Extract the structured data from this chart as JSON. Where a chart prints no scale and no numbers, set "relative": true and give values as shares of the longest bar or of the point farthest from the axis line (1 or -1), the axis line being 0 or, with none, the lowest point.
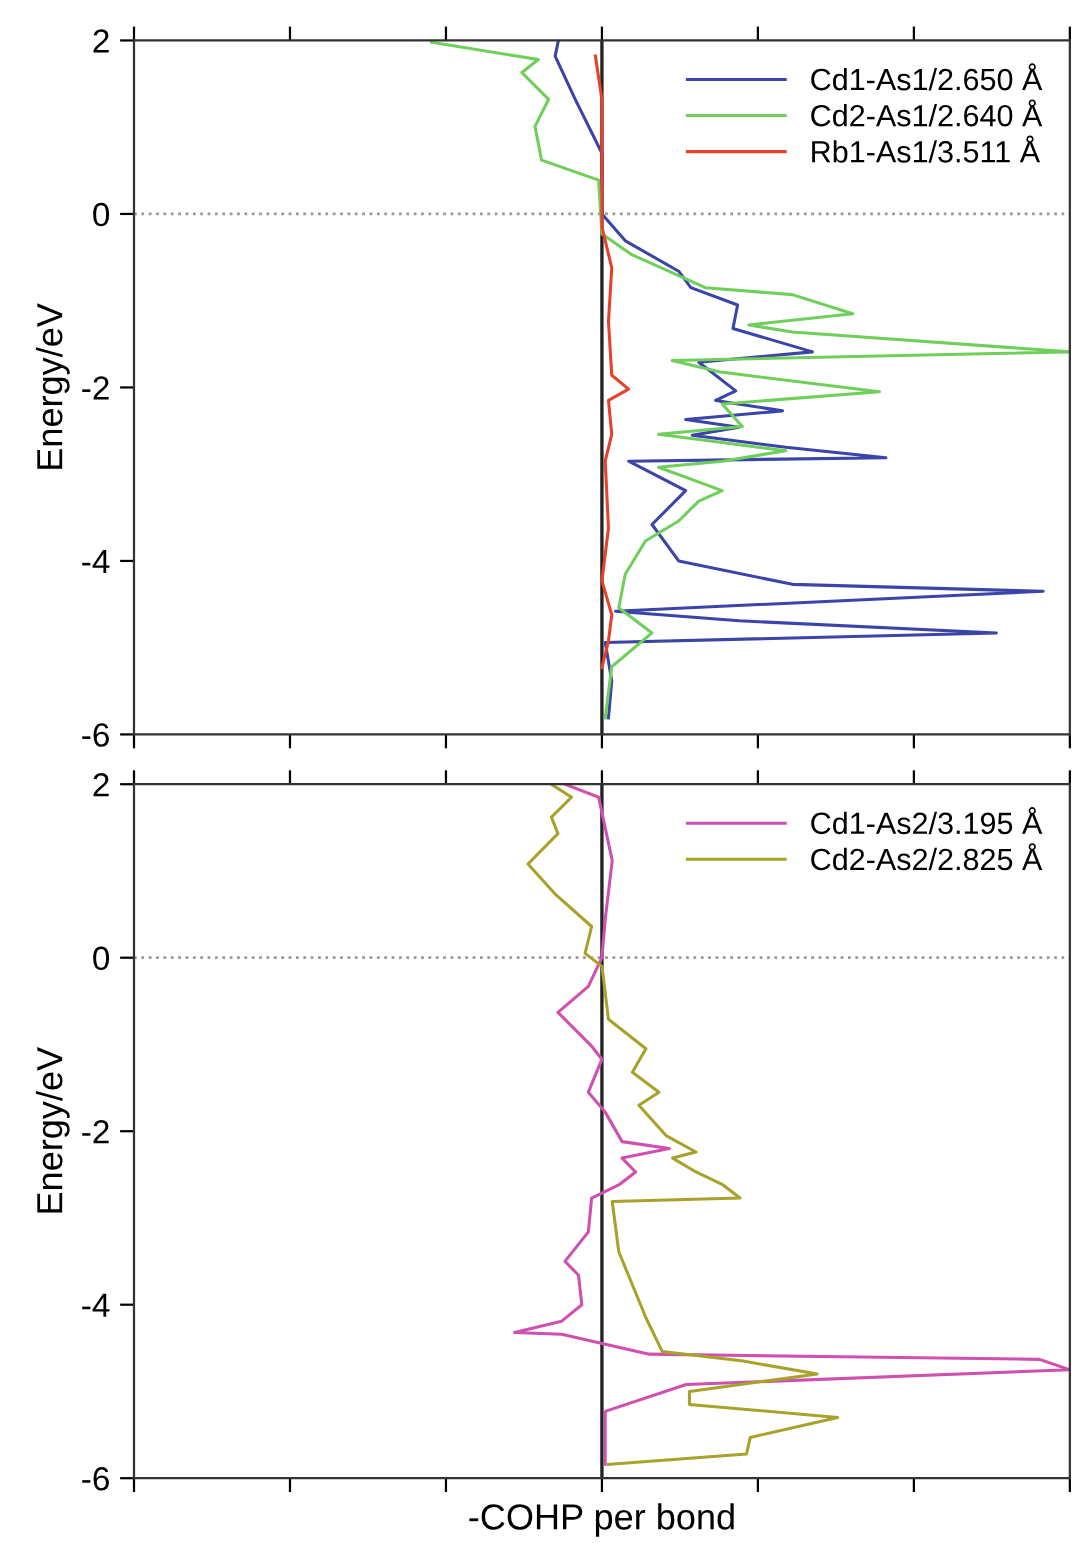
{
  "chart_data": [
    {
      "type": "line",
      "orientation": "horizontal",
      "relative": true,
      "ylabel": "Energy/eV",
      "ylim": [
        -6,
        2
      ],
      "yticks": [
        -6,
        -4,
        -2,
        0,
        2
      ],
      "tick_labels": "y",
      "grid": false,
      "legend": "top right",
      "ref_lines": [
        {
          "axis": "y",
          "value": 0,
          "label": null,
          "color": "#999999",
          "line_style": "dotted"
        }
      ],
      "series": [
        {
          "name": "Cd1-As1/2.650 Å",
          "color": "#3b44a8",
          "x": [
            2,
            1.82,
            1.32,
            0.7,
            0,
            -0.31,
            -0.66,
            -0.85,
            -1.05,
            -1.32,
            -1.59,
            -1.71,
            -2.04,
            -2.15,
            -2.27,
            -2.37,
            -2.46,
            -2.55,
            -2.69,
            -2.81,
            -2.85,
            -3.19,
            -3.58,
            -4.0,
            -4.27,
            -4.35,
            -4.58,
            -4.69,
            -4.83,
            -4.94,
            -5.38,
            -5.81
          ],
          "values": [
            -0.093,
            -0.1,
            -0.057,
            0,
            0,
            0.05,
            0.164,
            0.19,
            0.29,
            0.28,
            0.45,
            0.207,
            0.286,
            0.243,
            0.386,
            0.179,
            0.293,
            0.193,
            0.393,
            0.607,
            0.057,
            0.179,
            0.107,
            0.164,
            0.407,
            0.943,
            0.029,
            0.293,
            0.843,
            0.007,
            0.021,
            0.014
          ]
        },
        {
          "name": "Cd2-As1/2.640 Å",
          "color": "#6fcf5a",
          "x": [
            1.98,
            1.78,
            1.63,
            1.32,
            1.01,
            0.62,
            0.39,
            -0.23,
            -0.47,
            -0.85,
            -0.93,
            -1.15,
            -1.28,
            -1.36,
            -1.59,
            -1.69,
            -1.82,
            -2.05,
            -2.19,
            -2.45,
            -2.54,
            -2.73,
            -2.85,
            -2.92,
            -3.19,
            -3.31,
            -3.54,
            -3.77,
            -4.15,
            -4.54,
            -4.83,
            -5.22,
            -5.81
          ],
          "values": [
            -0.364,
            -0.136,
            -0.171,
            -0.114,
            -0.143,
            -0.129,
            -0.007,
            0,
            0.064,
            0.221,
            0.407,
            0.536,
            0.314,
            0.407,
            1.0,
            0.15,
            0.25,
            0.593,
            0.257,
            0.3,
            0.121,
            0.393,
            0.257,
            0.121,
            0.257,
            0.207,
            0.164,
            0.093,
            0.05,
            0.036,
            0.107,
            0.021,
            0.007
          ]
        },
        {
          "name": "Rb1-As1/3.511 Å",
          "color": "#e8412b",
          "x": [
            1.82,
            1.32,
            -0.15,
            -0.62,
            -1.24,
            -1.86,
            -2.02,
            -2.15,
            -2.54,
            -2.85,
            -3.62,
            -4.23,
            -4.62,
            -4.92,
            -5.23
          ],
          "values": [
            -0.014,
            0,
            0,
            0.021,
            0.014,
            0.021,
            0.057,
            0.014,
            0.021,
            0.007,
            0.014,
            0,
            0.021,
            0.014,
            0
          ]
        }
      ]
    },
    {
      "type": "line",
      "orientation": "horizontal",
      "relative": true,
      "xlabel": "-COHP per bond",
      "ylabel": "Energy/eV",
      "ylim": [
        -6,
        2
      ],
      "yticks": [
        -6,
        -4,
        -2,
        0,
        2
      ],
      "tick_labels": "y",
      "grid": false,
      "legend": "top right",
      "ref_lines": [
        {
          "axis": "y",
          "value": 0,
          "label": null,
          "color": "#999999",
          "line_style": "dotted"
        }
      ],
      "series": [
        {
          "name": "Cd1-As2/3.195 Å",
          "color": "#d050b0",
          "x": [
            2,
            1.85,
            1.12,
            0.44,
            0,
            -0.33,
            -0.63,
            -1.02,
            -1.17,
            -1.55,
            -1.78,
            -2.12,
            -2.2,
            -2.31,
            -2.47,
            -2.62,
            -2.77,
            -3.16,
            -3.5,
            -3.66,
            -4.0,
            -4.19,
            -4.32,
            -4.34,
            -4.57,
            -4.63,
            -4.75,
            -4.92,
            -5.23,
            -5.84
          ],
          "values": [
            -0.079,
            -0.007,
            0.022,
            0.007,
            0,
            -0.029,
            -0.094,
            -0.022,
            0,
            -0.029,
            0.007,
            0.043,
            0.144,
            0.043,
            0.072,
            0.036,
            -0.022,
            -0.029,
            -0.079,
            -0.05,
            -0.043,
            -0.086,
            -0.187,
            -0.086,
            0.101,
            0.935,
            1.0,
            0.18,
            0.007,
            0.007
          ]
        },
        {
          "name": "Cd2-As2/2.825 Å",
          "color": "#a8a22a",
          "x": [
            2,
            1.85,
            1.62,
            1.43,
            1.08,
            0.74,
            0.36,
            0.05,
            -0.1,
            -0.71,
            -1.05,
            -1.32,
            -1.55,
            -1.7,
            -2.05,
            -2.24,
            -2.31,
            -2.47,
            -2.62,
            -2.77,
            -2.81,
            -3.39,
            -3.77,
            -4.15,
            -4.54,
            -4.65,
            -4.8,
            -5.0,
            -5.15,
            -5.3,
            -5.53,
            -5.72,
            -5.84
          ],
          "values": [
            -0.108,
            -0.065,
            -0.108,
            -0.094,
            -0.158,
            -0.101,
            -0.022,
            -0.036,
            0,
            0.014,
            0.094,
            0.065,
            0.122,
            0.079,
            0.137,
            0.201,
            0.151,
            0.201,
            0.259,
            0.295,
            0.022,
            0.036,
            0.065,
            0.094,
            0.129,
            0.302,
            0.46,
            0.187,
            0.187,
            0.504,
            0.317,
            0.309,
            0.014
          ]
        }
      ]
    }
  ]
}
